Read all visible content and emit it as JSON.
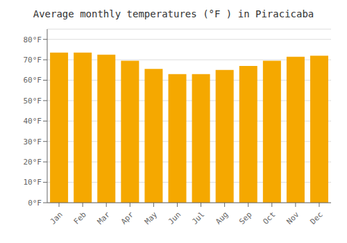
{
  "chart_data": {
    "type": "bar",
    "title": "Average monthly temperatures (°F ) in Piracicaba",
    "categories": [
      "Jan",
      "Feb",
      "Mar",
      "Apr",
      "May",
      "Jun",
      "Jul",
      "Aug",
      "Sep",
      "Oct",
      "Nov",
      "Dec"
    ],
    "values": [
      73.5,
      73.5,
      72.5,
      69.5,
      65.5,
      63.0,
      63.0,
      65.0,
      67.0,
      69.5,
      71.5,
      72.0
    ],
    "color": "#F5A800",
    "ylim": [
      0,
      85
    ],
    "yticks": [
      {
        "value": 0,
        "label": "0°F"
      },
      {
        "value": 10,
        "label": "10°F"
      },
      {
        "value": 20,
        "label": "20°F"
      },
      {
        "value": 30,
        "label": "30°F"
      },
      {
        "value": 40,
        "label": "40°F"
      },
      {
        "value": 50,
        "label": "50°F"
      },
      {
        "value": 60,
        "label": "60°F"
      },
      {
        "value": 70,
        "label": "70°F"
      },
      {
        "value": 80,
        "label": "80°F"
      }
    ],
    "grid": true
  }
}
